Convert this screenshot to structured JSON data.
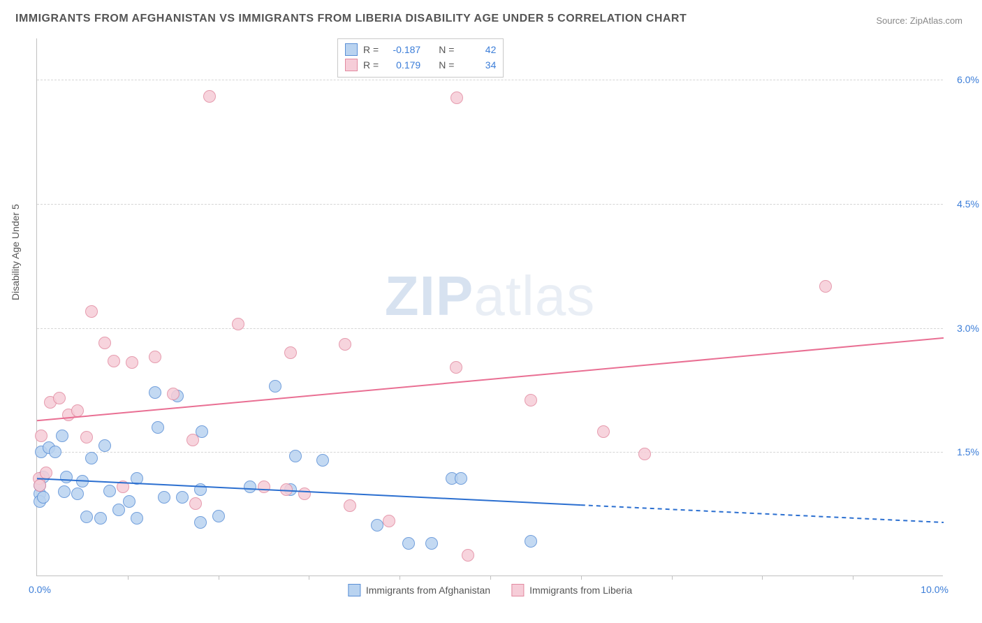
{
  "title": "IMMIGRANTS FROM AFGHANISTAN VS IMMIGRANTS FROM LIBERIA DISABILITY AGE UNDER 5 CORRELATION CHART",
  "source": "Source: ZipAtlas.com",
  "watermark_bold": "ZIP",
  "watermark_light": "atlas",
  "ylabel": "Disability Age Under 5",
  "chart": {
    "type": "scatter",
    "background_color": "#ffffff",
    "grid_color": "#d5d5d5",
    "axis_color": "#c0c0c0",
    "tick_color": "#3b7dd8",
    "xlim": [
      0,
      10
    ],
    "ylim": [
      0,
      6.5
    ],
    "xtick_labels": [
      "0.0%",
      "10.0%"
    ],
    "ytick_positions": [
      1.5,
      3.0,
      4.5,
      6.0
    ],
    "ytick_labels": [
      "1.5%",
      "3.0%",
      "4.5%",
      "6.0%"
    ],
    "xaxis_minor_ticks": [
      1,
      2,
      3,
      4,
      5,
      6,
      7,
      8,
      9
    ],
    "marker_radius": 9,
    "marker_stroke_width": 1.2,
    "series": [
      {
        "name": "Immigrants from Afghanistan",
        "fill": "#b9d3f0",
        "stroke": "#5a8fd6",
        "legend_fill": "#b9d3f0",
        "legend_stroke": "#5a8fd6",
        "R": "-0.187",
        "N": "42",
        "trend": {
          "color": "#2b6fd0",
          "width": 2,
          "x1": 0,
          "y1": 1.18,
          "x2": 6.0,
          "y2": 0.86,
          "dash_x2": 10,
          "dash_y2": 0.65
        },
        "points": [
          [
            0.03,
            1.0
          ],
          [
            0.03,
            0.9
          ],
          [
            0.03,
            1.1
          ],
          [
            0.07,
            0.95
          ],
          [
            0.07,
            1.2
          ],
          [
            0.05,
            1.5
          ],
          [
            0.13,
            1.55
          ],
          [
            0.2,
            1.5
          ],
          [
            0.28,
            1.7
          ],
          [
            0.3,
            1.02
          ],
          [
            0.32,
            1.2
          ],
          [
            0.45,
            1.0
          ],
          [
            0.5,
            1.15
          ],
          [
            0.55,
            0.72
          ],
          [
            0.6,
            1.43
          ],
          [
            0.7,
            0.7
          ],
          [
            0.8,
            1.03
          ],
          [
            0.75,
            1.58
          ],
          [
            0.9,
            0.8
          ],
          [
            1.02,
            0.9
          ],
          [
            1.1,
            0.7
          ],
          [
            1.1,
            1.18
          ],
          [
            1.3,
            2.22
          ],
          [
            1.33,
            1.8
          ],
          [
            1.4,
            0.95
          ],
          [
            1.55,
            2.18
          ],
          [
            1.6,
            0.95
          ],
          [
            1.8,
            0.65
          ],
          [
            1.8,
            1.05
          ],
          [
            1.82,
            1.75
          ],
          [
            2.0,
            0.73
          ],
          [
            2.35,
            1.08
          ],
          [
            2.63,
            2.3
          ],
          [
            2.8,
            1.05
          ],
          [
            2.85,
            1.45
          ],
          [
            3.15,
            1.4
          ],
          [
            3.75,
            0.62
          ],
          [
            4.1,
            0.4
          ],
          [
            4.35,
            0.4
          ],
          [
            4.58,
            1.18
          ],
          [
            4.68,
            1.18
          ],
          [
            5.45,
            0.42
          ]
        ]
      },
      {
        "name": "Immigrants from Liberia",
        "fill": "#f6cdd8",
        "stroke": "#e28aa0",
        "legend_fill": "#f6cdd8",
        "legend_stroke": "#e28aa0",
        "R": "0.179",
        "N": "34",
        "trend": {
          "color": "#e96f93",
          "width": 2,
          "x1": 0,
          "y1": 1.88,
          "x2": 10,
          "y2": 2.88
        },
        "points": [
          [
            0.02,
            1.18
          ],
          [
            0.03,
            1.1
          ],
          [
            0.05,
            1.7
          ],
          [
            0.1,
            1.25
          ],
          [
            0.15,
            2.1
          ],
          [
            0.25,
            2.15
          ],
          [
            0.35,
            1.95
          ],
          [
            0.45,
            2.0
          ],
          [
            0.55,
            1.68
          ],
          [
            0.6,
            3.2
          ],
          [
            0.75,
            2.82
          ],
          [
            0.85,
            2.6
          ],
          [
            1.3,
            2.65
          ],
          [
            1.5,
            2.2
          ],
          [
            1.72,
            1.65
          ],
          [
            1.75,
            0.88
          ],
          [
            1.9,
            5.8
          ],
          [
            2.22,
            3.05
          ],
          [
            2.5,
            1.08
          ],
          [
            2.75,
            1.05
          ],
          [
            2.8,
            2.7
          ],
          [
            2.95,
            1.0
          ],
          [
            3.4,
            2.8
          ],
          [
            3.45,
            0.85
          ],
          [
            3.88,
            0.67
          ],
          [
            4.62,
            2.52
          ],
          [
            4.63,
            5.78
          ],
          [
            4.75,
            0.25
          ],
          [
            5.45,
            2.13
          ],
          [
            6.25,
            1.75
          ],
          [
            6.7,
            1.48
          ],
          [
            8.7,
            3.5
          ],
          [
            1.05,
            2.58
          ],
          [
            0.95,
            1.08
          ]
        ]
      }
    ]
  },
  "legend_labels": {
    "R": "R =",
    "N": "N ="
  }
}
